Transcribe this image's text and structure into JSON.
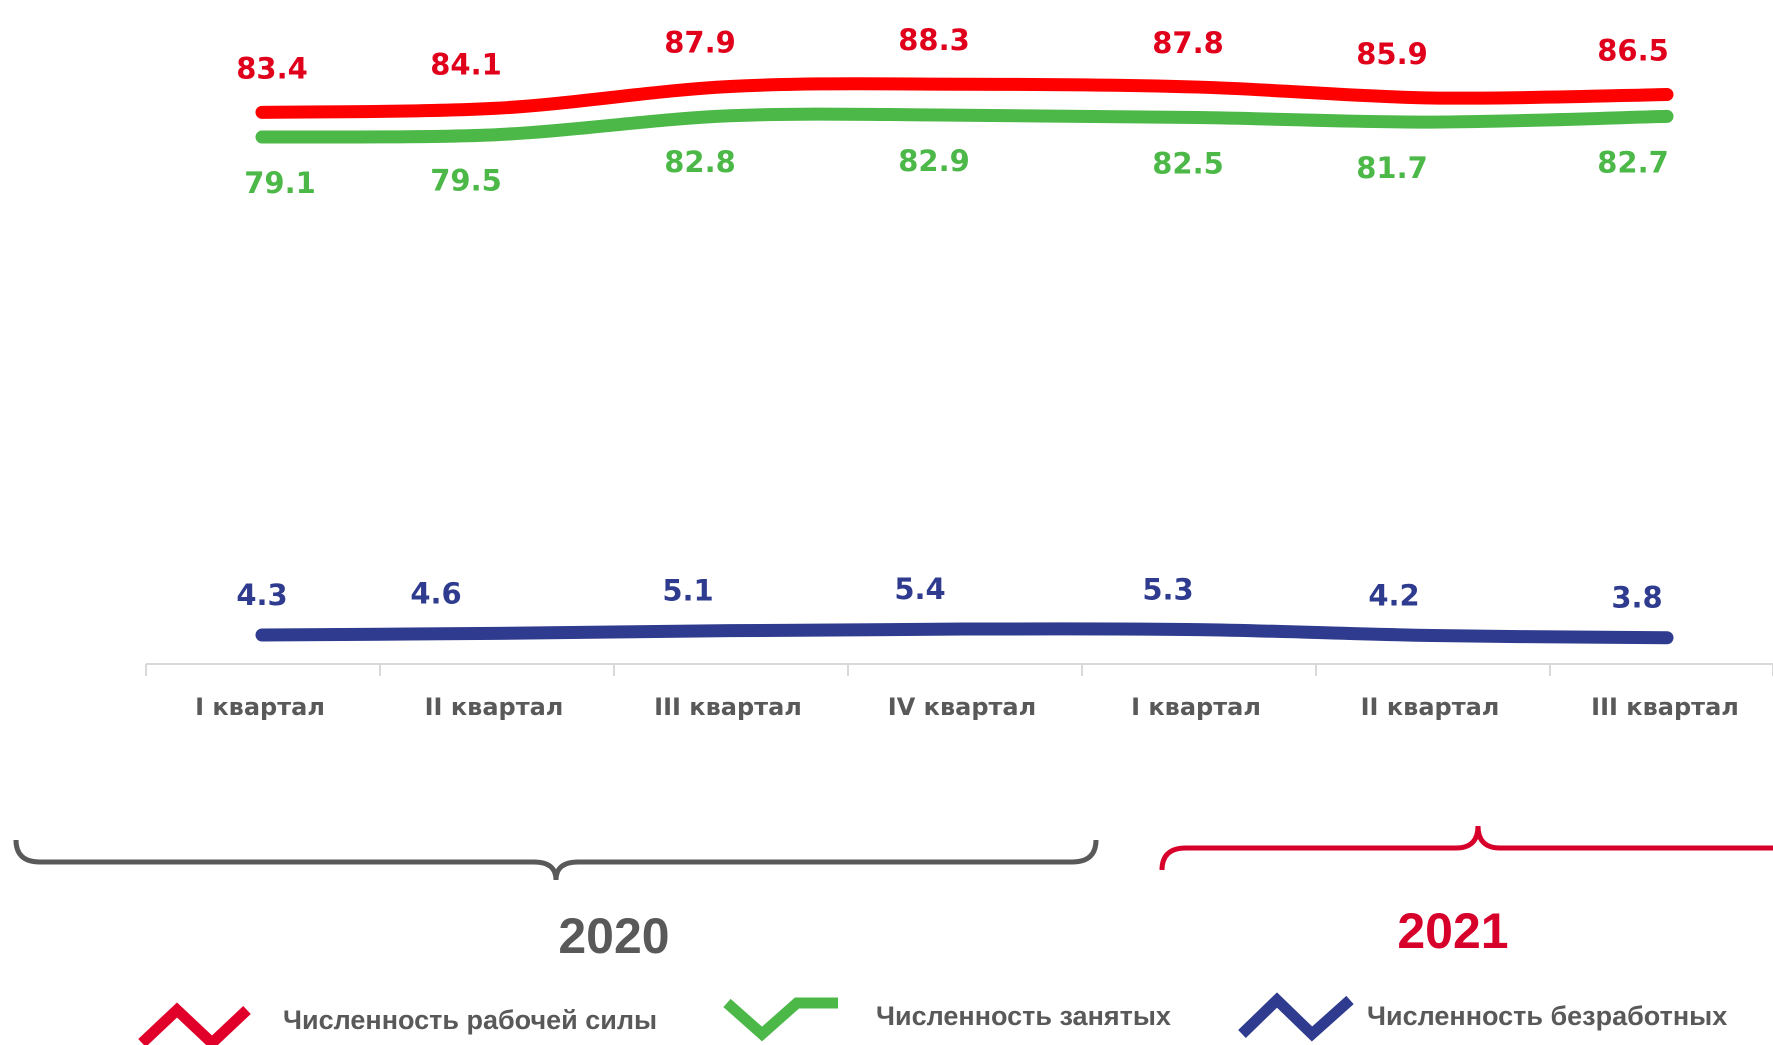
{
  "chart_data": {
    "type": "line",
    "categories": [
      "I квартал",
      "II квартал",
      "III квартал",
      "IV квартал",
      "I квартал",
      "II квартал",
      "III квартал"
    ],
    "series": [
      {
        "name": "Численность рабочей силы",
        "color": "#ff0000",
        "values": [
          83.4,
          84.1,
          87.9,
          88.3,
          87.8,
          85.9,
          86.5
        ]
      },
      {
        "name": "Численность занятых",
        "color": "#4cb848",
        "values": [
          79.1,
          79.5,
          82.8,
          82.9,
          82.5,
          81.7,
          82.7
        ]
      },
      {
        "name": "Численность безработных",
        "color": "#2e3b8e",
        "values": [
          4.3,
          4.6,
          5.1,
          5.4,
          5.3,
          4.2,
          3.8
        ]
      }
    ],
    "year_groups": [
      {
        "label": "2020",
        "color": "#595959",
        "spans": "I квартал – IV квартал"
      },
      {
        "label": "2021",
        "color": "#d6002a",
        "spans": "I квартал – III квартал"
      }
    ],
    "legend_position": "bottom",
    "grid": false
  }
}
